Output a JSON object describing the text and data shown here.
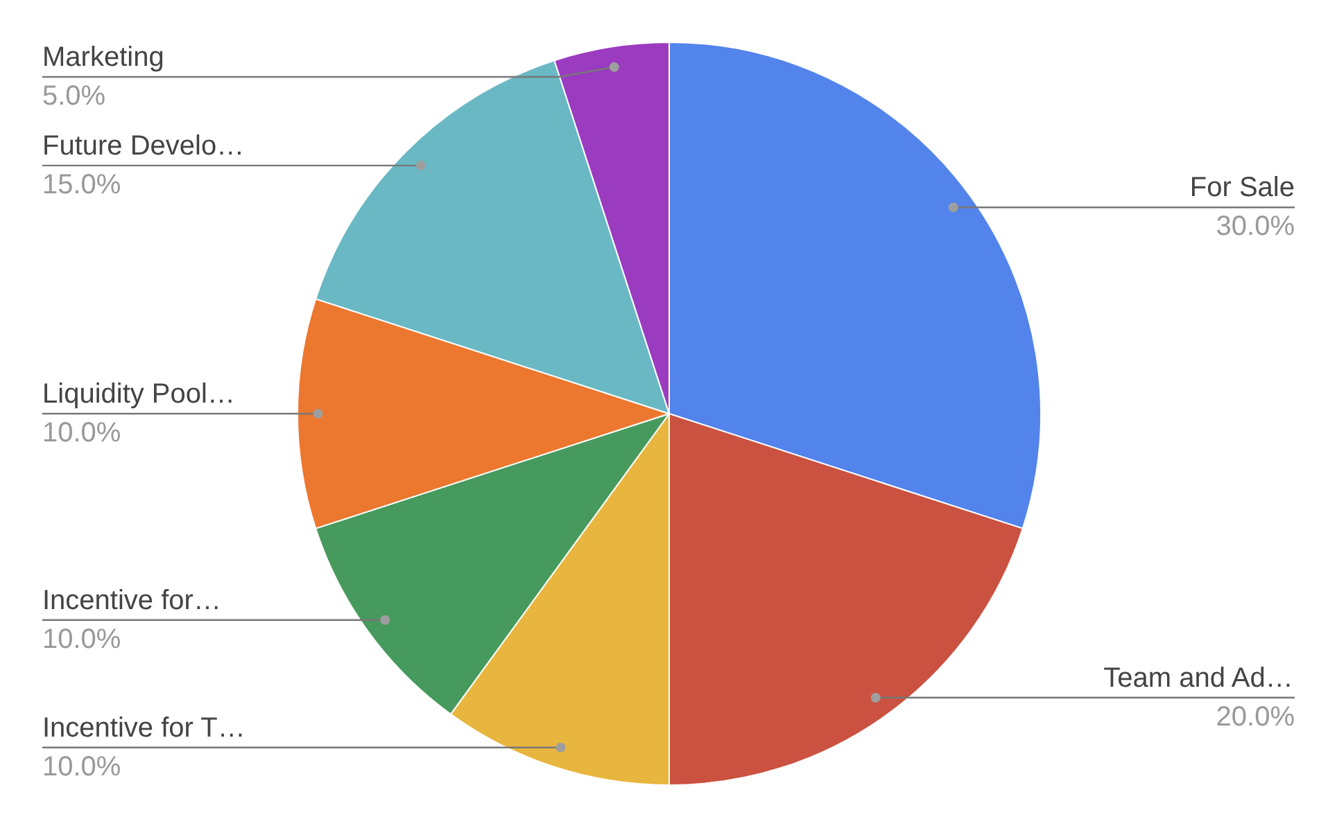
{
  "chart_data": {
    "type": "pie",
    "categories": [
      "For Sale",
      "Team and Ad…",
      "Incentive for T…",
      "Incentive for…",
      "Liquidity Pool…",
      "Future Develo…",
      "Marketing"
    ],
    "values": [
      30,
      20,
      10,
      10,
      10,
      15,
      5
    ],
    "value_labels": [
      "30.0%",
      "20.0%",
      "10.0%",
      "10.0%",
      "10.0%",
      "15.0%",
      "5.0%"
    ],
    "colors": [
      "#5384ec",
      "#cb5140",
      "#e8b63e",
      "#479a5d",
      "#ec772e",
      "#6ab8c4",
      "#9b3bc0"
    ]
  }
}
